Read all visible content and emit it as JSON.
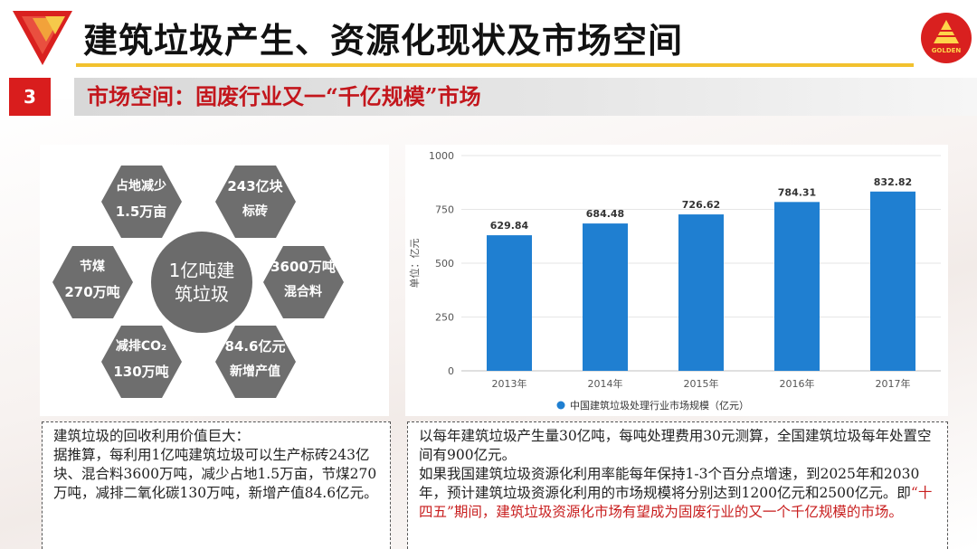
{
  "header": {
    "title": "建筑垃圾产生、资源化现状及市场空间",
    "logo_text": "GOLDEN"
  },
  "section": {
    "number": "3",
    "title": "市场空间：固废行业又一“千亿规模”市场"
  },
  "hexagons": {
    "center": [
      "1亿吨建",
      "筑垃圾"
    ],
    "items": [
      {
        "line1": "占地减少",
        "line2": "1.5万亩"
      },
      {
        "line1": "243亿块",
        "line2": "标砖"
      },
      {
        "line1": "节煤",
        "line2": "270万吨"
      },
      {
        "line1": "3600万吨",
        "line2": "混合料"
      },
      {
        "line1": "减排CO₂",
        "line2": "130万吨"
      },
      {
        "line1": "84.6亿元",
        "line2": "新增产值"
      }
    ]
  },
  "chart_data": {
    "type": "bar",
    "categories": [
      "2013年",
      "2014年",
      "2015年",
      "2016年",
      "2017年"
    ],
    "series": [
      {
        "name": "中国建筑垃圾处理行业市场规模（亿元）",
        "values": [
          629.84,
          684.48,
          726.62,
          784.31,
          832.82
        ]
      }
    ],
    "ylabel": "单位：亿元",
    "yticks": [
      0,
      250,
      500,
      750,
      1000
    ],
    "ylim": [
      0,
      1000
    ],
    "grid": true,
    "legend": "bottom",
    "bar_color": "#1f7fd1"
  },
  "left_text": {
    "line1": "建筑垃圾的回收利用价值巨大：",
    "para": "据推算，每利用1亿吨建筑垃圾可以生产标砖243亿块、混合料3600万吨，减少占地1.5万亩，节煤270万吨，减排二氧化碳130万吨，新增产值84.6亿元。"
  },
  "right_text": {
    "para1": "以每年建筑垃圾产生量30亿吨，每吨处理费用30元测算，全国建筑垃圾每年处置空间有900亿元。",
    "para2_normal": "如果我国建筑垃圾资源化利用率能每年保持1-3个百分点增速，到2025年和2030年，预计建筑垃圾资源化利用的市场规模将分别达到1200亿元和2500亿元。即",
    "para2_red": "“十四五”期间，建筑垃圾资源化市场有望成为固废行业的又一个千亿规模的市场。"
  },
  "colors": {
    "accent_red": "#d91d1d",
    "title_rule": "#f2c12e",
    "hexagon_gray": "#6e6e6e",
    "bar_blue": "#1f7fd1"
  }
}
